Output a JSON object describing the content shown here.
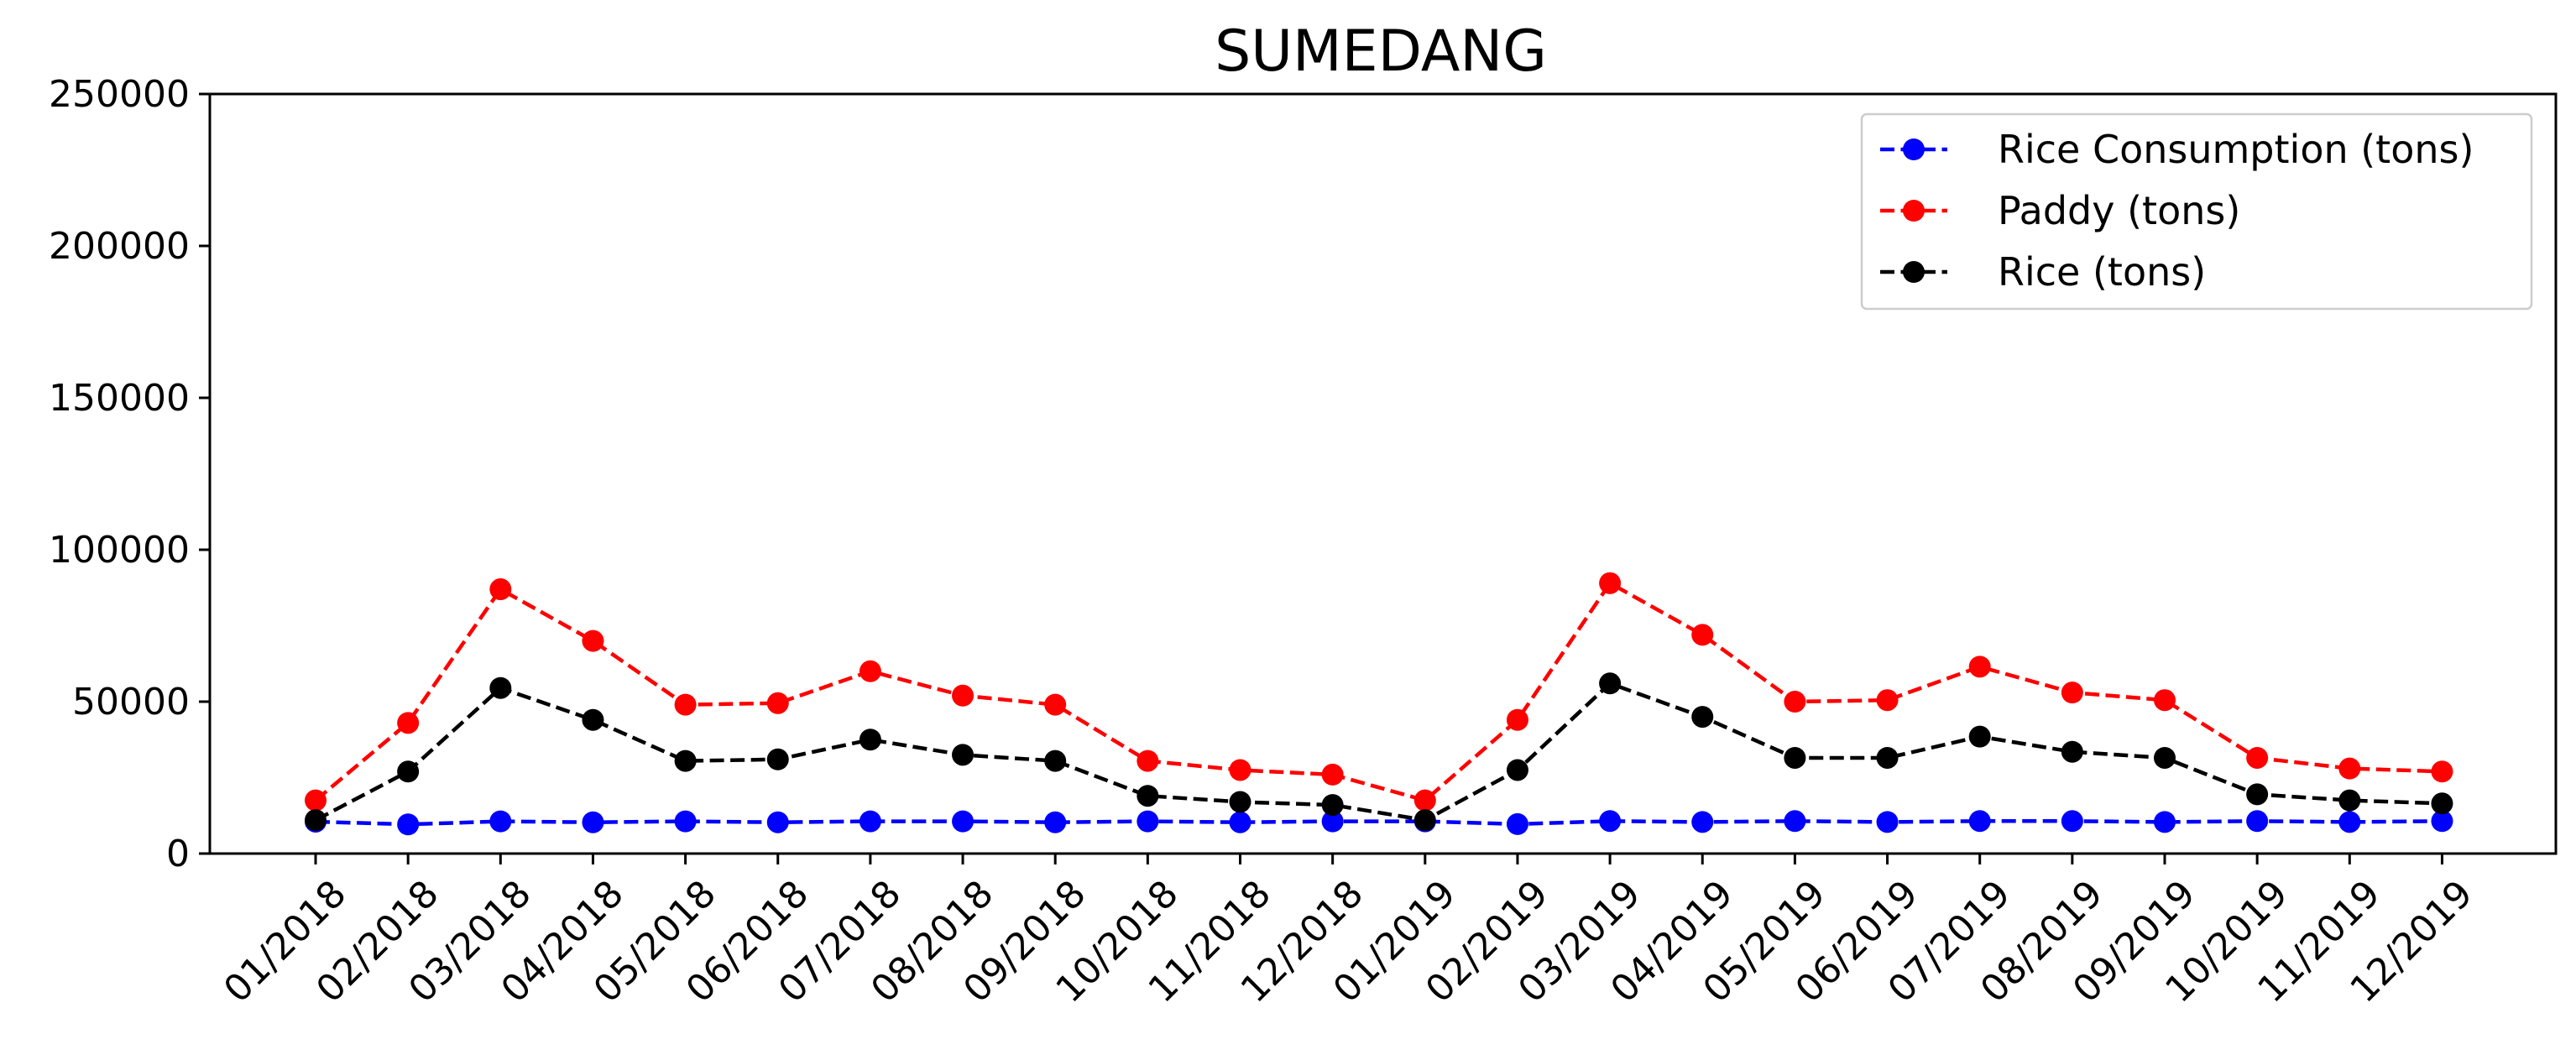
{
  "chart_data": {
    "type": "line",
    "title": "SUMEDANG",
    "xlabel": "",
    "ylabel": "",
    "ylim": [
      0,
      250000
    ],
    "yticks": [
      "0",
      "50000",
      "100000",
      "150000",
      "200000",
      "250000"
    ],
    "grid": false,
    "legend_position": "top-right",
    "categories": [
      "01/2018",
      "02/2018",
      "03/2018",
      "04/2018",
      "05/2018",
      "06/2018",
      "07/2018",
      "08/2018",
      "09/2018",
      "10/2018",
      "11/2018",
      "12/2018",
      "01/2019",
      "02/2019",
      "03/2019",
      "04/2019",
      "05/2019",
      "06/2019",
      "07/2019",
      "08/2019",
      "09/2019",
      "10/2019",
      "11/2019",
      "12/2019"
    ],
    "series": [
      {
        "name": "Rice Consumption (tons)",
        "color": "#0000ff",
        "line_style": "dashed",
        "marker": "circle",
        "values": [
          10500,
          9600,
          10600,
          10300,
          10600,
          10300,
          10600,
          10600,
          10300,
          10600,
          10300,
          10600,
          10600,
          9700,
          10700,
          10400,
          10700,
          10400,
          10700,
          10700,
          10400,
          10700,
          10400,
          10700
        ]
      },
      {
        "name": "Paddy (tons)",
        "color": "#ff0000",
        "line_style": "dashed",
        "marker": "circle",
        "values": [
          17500,
          43000,
          87000,
          70000,
          49000,
          49500,
          60000,
          52000,
          49000,
          30500,
          27500,
          26000,
          17500,
          44000,
          89000,
          72000,
          50000,
          50500,
          61500,
          53000,
          50500,
          31500,
          28000,
          27000
        ]
      },
      {
        "name": "Rice (tons)",
        "color": "#000000",
        "line_style": "dashed",
        "marker": "circle",
        "values": [
          11000,
          27000,
          54500,
          44000,
          30500,
          31000,
          37500,
          32500,
          30500,
          19000,
          17000,
          16000,
          11000,
          27500,
          56000,
          45000,
          31500,
          31500,
          38500,
          33500,
          31500,
          19500,
          17500,
          16500
        ]
      }
    ]
  }
}
